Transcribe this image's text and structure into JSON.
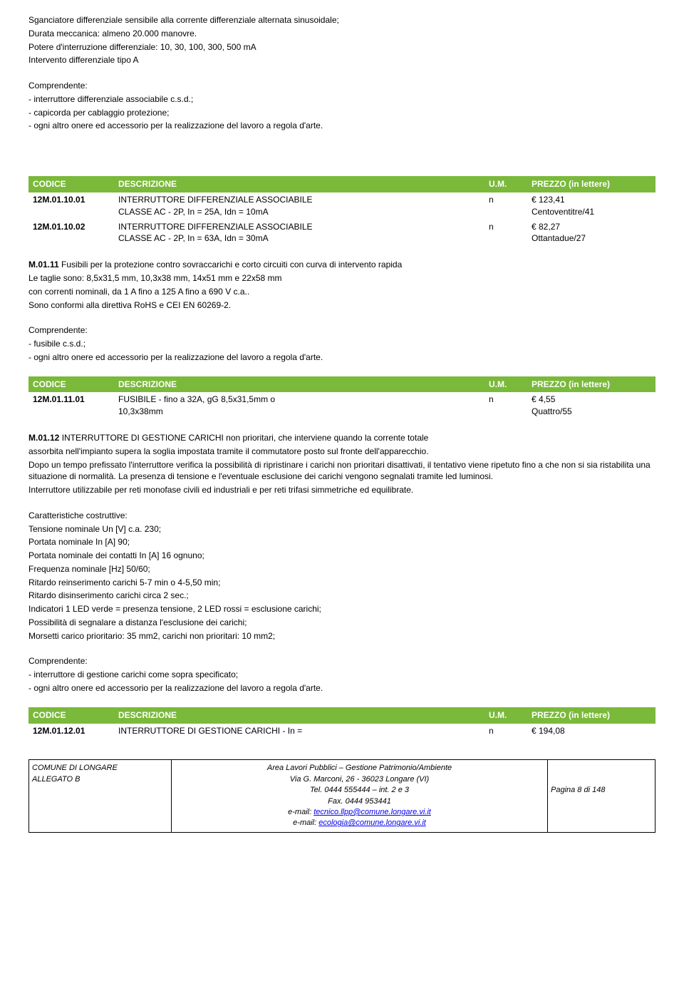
{
  "intro": {
    "p1": "Sganciatore differenziale sensibile alla corrente differenziale alternata sinusoidale;",
    "p2": "Durata meccanica: almeno 20.000 manovre.",
    "p3": "Potere d'interruzione differenziale: 10, 30, 100, 300, 500 mA",
    "p4": "Intervento differenziale tipo A",
    "comp_title": "Comprendente:",
    "comp1": "- interruttore differenziale associabile c.s.d.;",
    "comp2": "- capicorda per cablaggio protezione;",
    "comp3": "- ogni altro onere ed accessorio per la realizzazione del lavoro a regola d'arte."
  },
  "table_headers": {
    "code": "CODICE",
    "desc": "DESCRIZIONE",
    "um": "U.M.",
    "price": "PREZZO (in lettere)"
  },
  "table1": {
    "rows": [
      {
        "code": "12M.01.10.01",
        "desc1": "INTERRUTTORE DIFFERENZIALE ASSOCIABILE",
        "desc2": "CLASSE AC - 2P, In = 25A, Idn = 10mA",
        "um": "n",
        "price1": "€ 123,41",
        "price2": "Centoventitre/41"
      },
      {
        "code": "12M.01.10.02",
        "desc1": "INTERRUTTORE DIFFERENZIALE ASSOCIABILE",
        "desc2": "CLASSE AC - 2P, In = 63A, Idn = 30mA",
        "um": "n",
        "price1": "€ 82,27",
        "price2": "Ottantadue/27"
      }
    ]
  },
  "section2": {
    "title_code": "M.01.11",
    "title_text": " Fusibili per la protezione contro sovraccarichi e corto circuiti con curva di intervento rapida",
    "p1": "Le taglie sono: 8,5x31,5 mm, 10,3x38 mm, 14x51 mm e 22x58 mm",
    "p2": "con correnti nominali, da 1 A fino a 125 A fino a 690 V c.a..",
    "p3": "Sono conformi alla direttiva RoHS e CEI EN 60269-2.",
    "comp_title": "Comprendente:",
    "comp1": "- fusibile c.s.d.;",
    "comp2": "- ogni altro onere ed accessorio per la realizzazione del lavoro a regola d'arte."
  },
  "table2": {
    "rows": [
      {
        "code": "12M.01.11.01",
        "desc1": "FUSIBILE - fino a 32A, gG 8,5x31,5mm o",
        "desc2": "10,3x38mm",
        "um": "n",
        "price1": "€ 4,55",
        "price2": "Quattro/55"
      }
    ]
  },
  "section3": {
    "title_code": "M.01.12",
    "title_text": " INTERRUTTORE DI GESTIONE CARICHI non prioritari, che interviene quando la corrente totale",
    "p1": "assorbita nell'impianto supera la soglia impostata tramite il commutatore posto sul fronte dell'apparecchio.",
    "p2": "Dopo un tempo prefissato l'interruttore verifica la possibilità di ripristinare i carichi non prioritari disattivati, il tentativo viene ripetuto fino a che non si sia ristabilita una situazione di normalità. La presenza di tensione e l'eventuale esclusione dei carichi vengono segnalati tramite led luminosi.",
    "p3": "Interruttore utilizzabile per reti monofase civili ed industriali e per reti trifasi simmetriche ed equilibrate.",
    "char_title": "Caratteristiche costruttive:",
    "c1": "Tensione nominale Un [V] c.a. 230;",
    "c2": "Portata nominale In [A] 90;",
    "c3": "Portata nominale dei contatti In [A] 16 ognuno;",
    "c4": "Frequenza nominale [Hz] 50/60;",
    "c5": "Ritardo reinserimento carichi 5-7 min o 4-5,50 min;",
    "c6": "Ritardo disinserimento carichi circa 2 sec.;",
    "c7": "Indicatori 1 LED verde = presenza tensione, 2 LED rossi = esclusione carichi;",
    "c8": "Possibilità di segnalare a distanza l'esclusione dei carichi;",
    "c9": "Morsetti carico prioritario: 35 mm2, carichi non prioritari: 10 mm2;",
    "comp_title": "Comprendente:",
    "comp1": "- interruttore di gestione carichi come sopra specificato;",
    "comp2": "- ogni altro onere ed accessorio per la realizzazione del lavoro a regola d'arte."
  },
  "table3": {
    "rows": [
      {
        "code": "12M.01.12.01",
        "desc1": "INTERRUTTORE DI GESTIONE CARICHI - In =",
        "um": "n",
        "price1": "€ 194,08"
      }
    ]
  },
  "footer": {
    "left1": "COMUNE DI LONGARE",
    "left2": "ALLEGATO B",
    "center1": "Area Lavori Pubblici – Gestione Patrimonio/Ambiente",
    "center2": "Via G. Marconi, 26 - 36023 Longare (VI)",
    "center3": "Tel. 0444 555444 – int. 2 e 3",
    "center4": "Fax. 0444 953441",
    "center5_pre": "e-mail: ",
    "center5_link": "tecnico.llpp@comune.longare.vi.it",
    "center6_pre": "e-mail: ",
    "center6_link": "ecologia@comune.longare.vi.it",
    "right": "Pagina 8 di 148"
  }
}
